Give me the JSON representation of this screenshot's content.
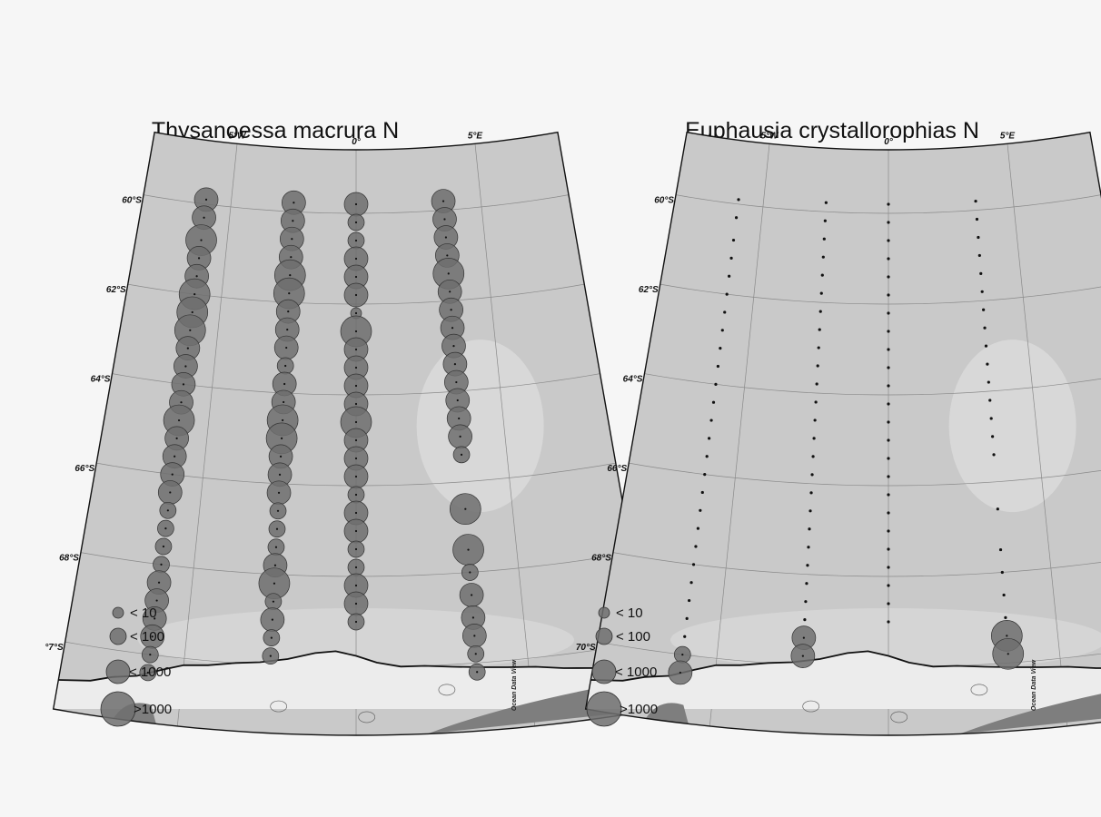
{
  "panels": [
    {
      "title": "Thysanoessa macrura N",
      "lon_labels": [
        "5°W",
        "0°",
        "5°E"
      ],
      "lat_labels": [
        "60°S",
        "62°S",
        "64°S",
        "66°S",
        "68°S",
        "70°S"
      ],
      "lat_label_70_display": "°7°S",
      "legend": [
        "< 10",
        "< 100",
        "< 1000",
        ">1000"
      ],
      "credit": "Ocean Data View",
      "transects": [
        {
          "lon": -6,
          "lats": [
            59.9,
            60.3,
            60.8,
            61.2,
            61.6,
            62.0,
            62.4,
            62.8,
            63.2,
            63.6,
            64.0,
            64.4,
            64.8,
            65.2,
            65.6,
            66.0,
            66.4,
            66.8,
            67.2,
            67.6,
            68.0,
            68.4,
            68.8,
            69.2,
            69.6,
            70.0,
            70.4
          ],
          "classes": [
            3,
            3,
            4,
            3,
            3,
            4,
            4,
            4,
            3,
            3,
            3,
            3,
            4,
            3,
            3,
            3,
            3,
            2,
            2,
            2,
            2,
            3,
            3,
            3,
            3,
            2,
            2
          ]
        },
        {
          "lon": -2.5,
          "lats": [
            59.8,
            60.2,
            60.6,
            61.0,
            61.4,
            61.8,
            62.2,
            62.6,
            63.0,
            63.4,
            63.8,
            64.2,
            64.6,
            65.0,
            65.4,
            65.8,
            66.2,
            66.6,
            67.0,
            67.4,
            67.8,
            68.2,
            68.6,
            69.0,
            69.4,
            69.8
          ],
          "classes": [
            3,
            3,
            3,
            3,
            4,
            4,
            3,
            3,
            3,
            2,
            3,
            3,
            4,
            4,
            3,
            3,
            3,
            2,
            2,
            2,
            3,
            4,
            2,
            3,
            2,
            2
          ]
        },
        {
          "lon": 0,
          "lats": [
            59.8,
            60.2,
            60.6,
            61.0,
            61.4,
            61.8,
            62.2,
            62.6,
            63.0,
            63.4,
            63.8,
            64.2,
            64.6,
            65.0,
            65.4,
            65.8,
            66.2,
            66.6,
            67.0,
            67.4,
            67.8,
            68.2,
            68.6,
            69.0
          ],
          "classes": [
            3,
            2,
            2,
            3,
            3,
            3,
            1,
            4,
            3,
            3,
            3,
            3,
            4,
            3,
            3,
            3,
            2,
            3,
            3,
            2,
            2,
            3,
            3,
            2
          ]
        },
        {
          "lon": 3.5,
          "lats": [
            59.8,
            60.2,
            60.6,
            61.0,
            61.4,
            61.8,
            62.2,
            62.6,
            63.0,
            63.4,
            63.8,
            64.2,
            64.6,
            65.0,
            65.4,
            66.6,
            67.5,
            68.0,
            68.5,
            69.0,
            69.4,
            69.8,
            70.2
          ],
          "classes": [
            3,
            3,
            3,
            3,
            4,
            3,
            3,
            3,
            3,
            3,
            3,
            3,
            3,
            3,
            2,
            4,
            4,
            2,
            3,
            3,
            3,
            2,
            2
          ]
        }
      ]
    },
    {
      "title": "Euphausia crystallorophias N",
      "lon_labels": [
        "5°W",
        "0°",
        "5°E"
      ],
      "lat_labels": [
        "60°S",
        "62°S",
        "64°S",
        "66°S",
        "68°S",
        "70°S"
      ],
      "legend": [
        "< 10",
        "< 100",
        "< 1000",
        ">1000"
      ],
      "credit": "Ocean Data View",
      "transects": [
        {
          "lon": -6,
          "lats": [
            59.9,
            60.3,
            60.8,
            61.2,
            61.6,
            62.0,
            62.4,
            62.8,
            63.2,
            63.6,
            64.0,
            64.4,
            64.8,
            65.2,
            65.6,
            66.0,
            66.4,
            66.8,
            67.2,
            67.6,
            68.0,
            68.4,
            68.8,
            69.2,
            69.6,
            70.0,
            70.4
          ],
          "classes": [
            0,
            0,
            0,
            0,
            0,
            0,
            0,
            0,
            0,
            0,
            0,
            0,
            0,
            0,
            0,
            0,
            0,
            0,
            0,
            0,
            0,
            0,
            0,
            0,
            0,
            2,
            3
          ]
        },
        {
          "lon": -2.5,
          "lats": [
            59.8,
            60.2,
            60.6,
            61.0,
            61.4,
            61.8,
            62.2,
            62.6,
            63.0,
            63.4,
            63.8,
            64.2,
            64.6,
            65.0,
            65.4,
            65.8,
            66.2,
            66.6,
            67.0,
            67.4,
            67.8,
            68.2,
            68.6,
            69.0,
            69.4,
            69.8
          ],
          "classes": [
            0,
            0,
            0,
            0,
            0,
            0,
            0,
            0,
            0,
            0,
            0,
            0,
            0,
            0,
            0,
            0,
            0,
            0,
            0,
            0,
            0,
            0,
            0,
            0,
            3,
            3
          ]
        },
        {
          "lon": 0,
          "lats": [
            59.8,
            60.2,
            60.6,
            61.0,
            61.4,
            61.8,
            62.2,
            62.6,
            63.0,
            63.4,
            63.8,
            64.2,
            64.6,
            65.0,
            65.4,
            65.8,
            66.2,
            66.6,
            67.0,
            67.4,
            67.8,
            68.2,
            68.6,
            69.0
          ],
          "classes": [
            0,
            0,
            0,
            0,
            0,
            0,
            0,
            0,
            0,
            0,
            0,
            0,
            0,
            0,
            0,
            0,
            0,
            0,
            0,
            0,
            0,
            0,
            0,
            0
          ]
        },
        {
          "lon": 3.5,
          "lats": [
            59.8,
            60.2,
            60.6,
            61.0,
            61.4,
            61.8,
            62.2,
            62.6,
            63.0,
            63.4,
            63.8,
            64.2,
            64.6,
            65.0,
            65.4,
            66.6,
            67.5,
            68.0,
            68.5,
            69.0,
            69.4,
            69.8
          ],
          "classes": [
            0,
            0,
            0,
            0,
            0,
            0,
            0,
            0,
            0,
            0,
            0,
            0,
            0,
            0,
            0,
            0,
            0,
            0,
            0,
            0,
            4,
            4
          ]
        }
      ]
    }
  ],
  "colors": {
    "page": "#f6f6f6",
    "sea": "#c9c9c9",
    "sea_light": "#dadada",
    "shelf": "#ececec",
    "land": "#7e7e7e",
    "bubble": "#6f6f6f"
  }
}
